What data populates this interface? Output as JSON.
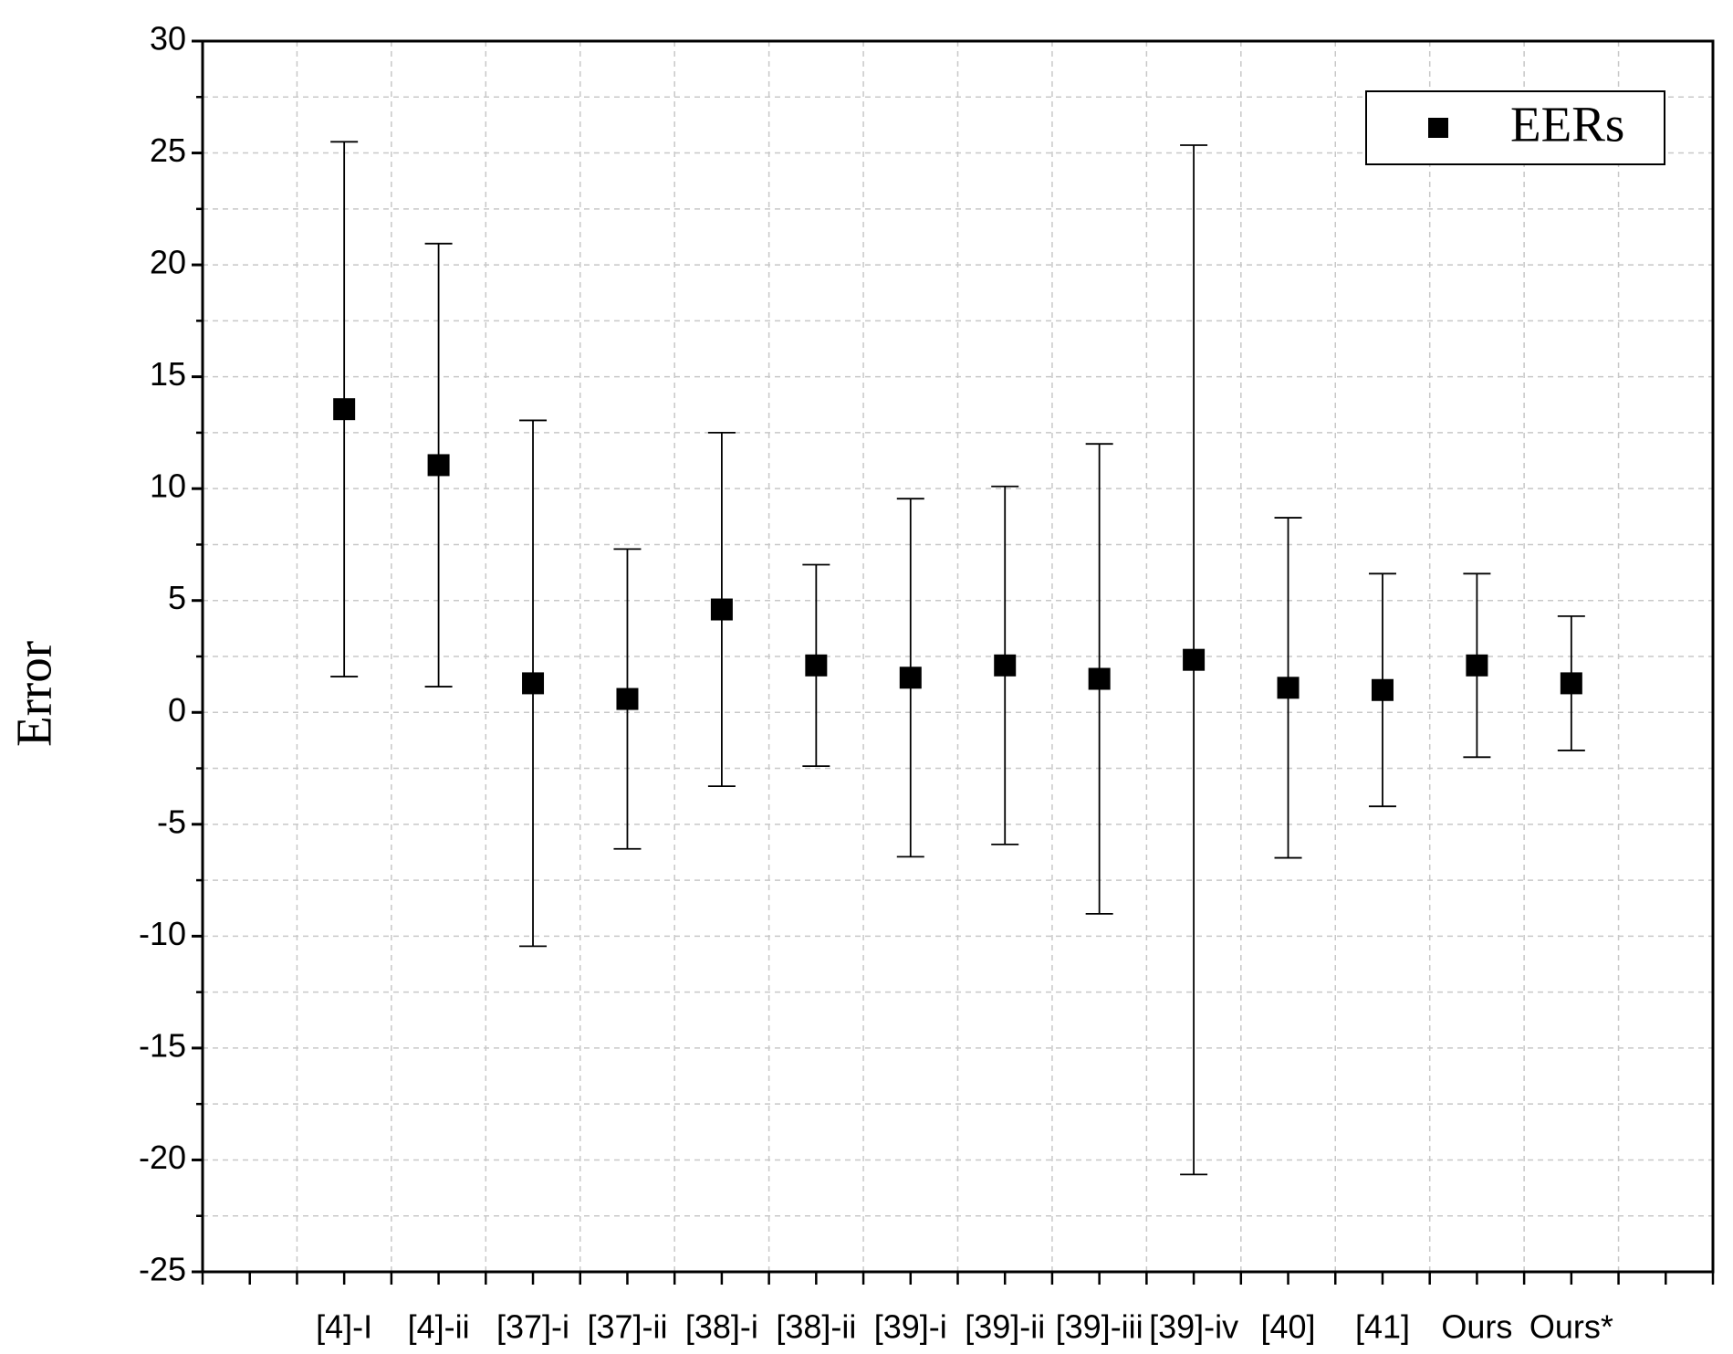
{
  "chart_data": {
    "type": "errorbar-scatter",
    "y_label": "Error",
    "categories": [
      "[4]-I",
      "[4]-ii",
      "[37]-i",
      "[37]-ii",
      "[38]-i",
      "[38]-ii",
      "[39]-i",
      "[39]-ii",
      "[39]-iii",
      "[39]-iv",
      "[40]",
      "[41]",
      "Ours",
      "Ours*"
    ],
    "series": [
      {
        "name": "EERs",
        "color": "#000000",
        "values": [
          13.55,
          11.05,
          1.3,
          0.6,
          4.6,
          2.1,
          1.55,
          2.1,
          1.5,
          2.35,
          1.1,
          1.0,
          2.1,
          1.3
        ],
        "errors": [
          11.95,
          9.9,
          11.75,
          6.7,
          7.9,
          4.5,
          8.0,
          8.0,
          10.5,
          23.0,
          7.6,
          5.2,
          4.1,
          3.0
        ]
      }
    ],
    "ylim": [
      -25,
      30
    ],
    "yticks": [
      -25,
      -20,
      -15,
      -10,
      -5,
      0,
      5,
      10,
      15,
      20,
      25,
      30
    ],
    "grid": true,
    "legend": "top-right"
  }
}
